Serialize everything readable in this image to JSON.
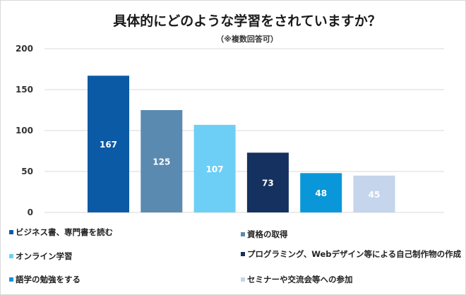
{
  "chart_data": {
    "type": "bar",
    "title": "具体的にどのような学習をされていますか？",
    "subtitle": "（※複数回答可）",
    "categories": [
      "ビジネス書、専門書を読む",
      "資格の取得",
      "オンライン学習",
      "プログラミング、Webデザイン等による自己制作物の作成",
      "語学の勉強をする",
      "セミナーや交流会等への参加"
    ],
    "values": [
      167,
      125,
      107,
      73,
      48,
      45
    ],
    "colors": [
      "#0b5aa6",
      "#5b8ab0",
      "#6dcff6",
      "#14315f",
      "#0a97d9",
      "#c4d5ec"
    ],
    "ylim": [
      0,
      200
    ],
    "yticks": [
      0,
      50,
      100,
      150,
      200
    ],
    "ytick_labels": [
      "0",
      "50",
      "100",
      "150",
      "200"
    ],
    "data_labels": [
      "167",
      "125",
      "107",
      "73",
      "48",
      "45"
    ],
    "grid": true,
    "legend_position": "bottom",
    "xlabel": "",
    "ylabel": ""
  }
}
